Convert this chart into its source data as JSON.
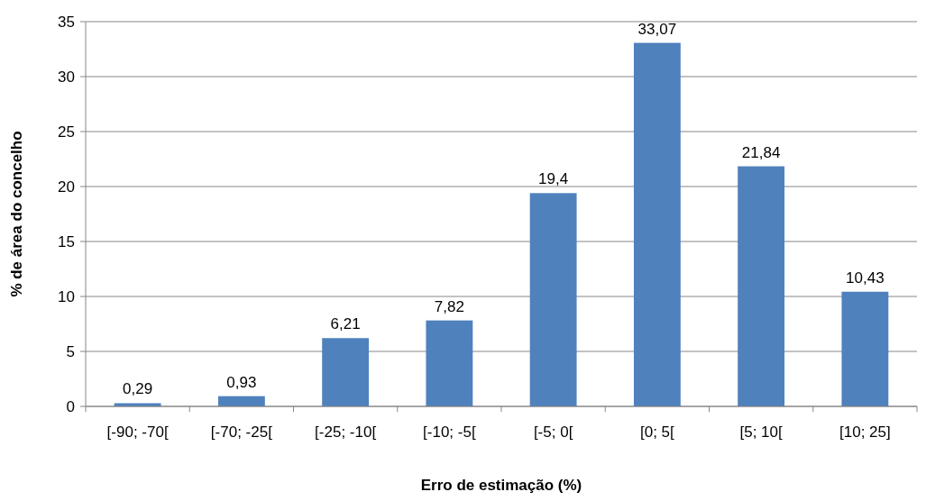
{
  "chart_data": {
    "type": "bar",
    "xlabel": "Erro de estimação (%)",
    "ylabel": "% de área do concelho",
    "categories": [
      "[-90; -70[",
      "[-70; -25[",
      "[-25; -10[",
      "[-10; -5[",
      "[-5; 0[",
      "[0; 5[",
      "[5; 10[",
      "[10; 25]"
    ],
    "values": [
      0.29,
      0.93,
      6.21,
      7.82,
      19.4,
      33.07,
      21.84,
      10.43
    ],
    "value_labels": [
      "0,29",
      "0,93",
      "6,21",
      "7,82",
      "19,4",
      "33,07",
      "21,84",
      "10,43"
    ],
    "color": "#4f81bd",
    "ylim": [
      0,
      35
    ],
    "yticks": [
      0,
      5,
      10,
      15,
      20,
      25,
      30,
      35
    ],
    "grid": "y"
  }
}
